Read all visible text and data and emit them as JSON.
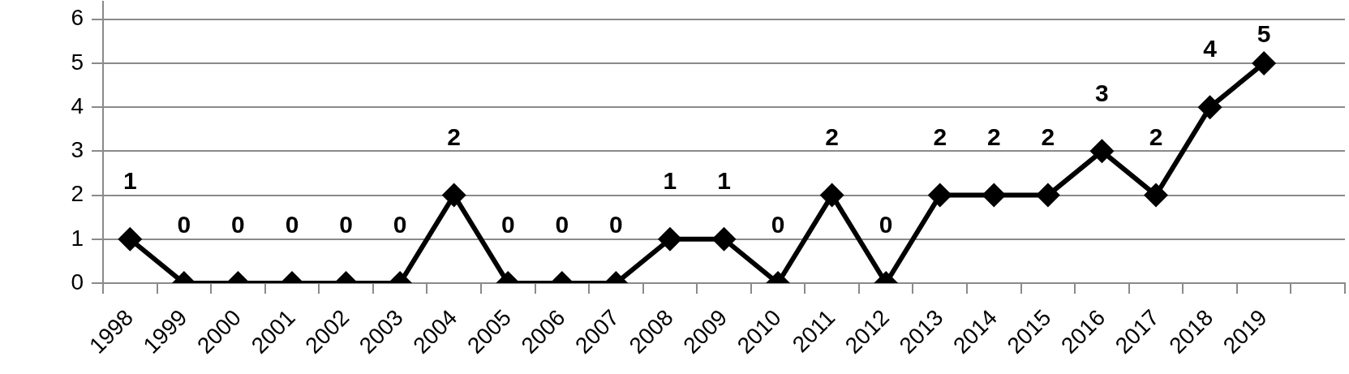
{
  "chart_data": {
    "type": "line",
    "categories": [
      "1998",
      "1999",
      "2000",
      "2001",
      "2002",
      "2003",
      "2004",
      "2005",
      "2006",
      "2007",
      "2008",
      "2009",
      "2010",
      "2011",
      "2012",
      "2013",
      "2014",
      "2015",
      "2016",
      "2017",
      "2018",
      "2019",
      null
    ],
    "values": [
      1,
      0,
      0,
      0,
      0,
      0,
      2,
      0,
      0,
      0,
      1,
      1,
      0,
      2,
      0,
      2,
      2,
      2,
      3,
      2,
      4,
      5,
      null
    ],
    "color": "#000000",
    "ylim": [
      0,
      6.4
    ],
    "yticks": [
      0,
      1,
      2,
      3,
      4,
      5,
      6
    ],
    "grid": "y",
    "marker": "diamond",
    "line_style": "solid",
    "data_labels": true
  }
}
